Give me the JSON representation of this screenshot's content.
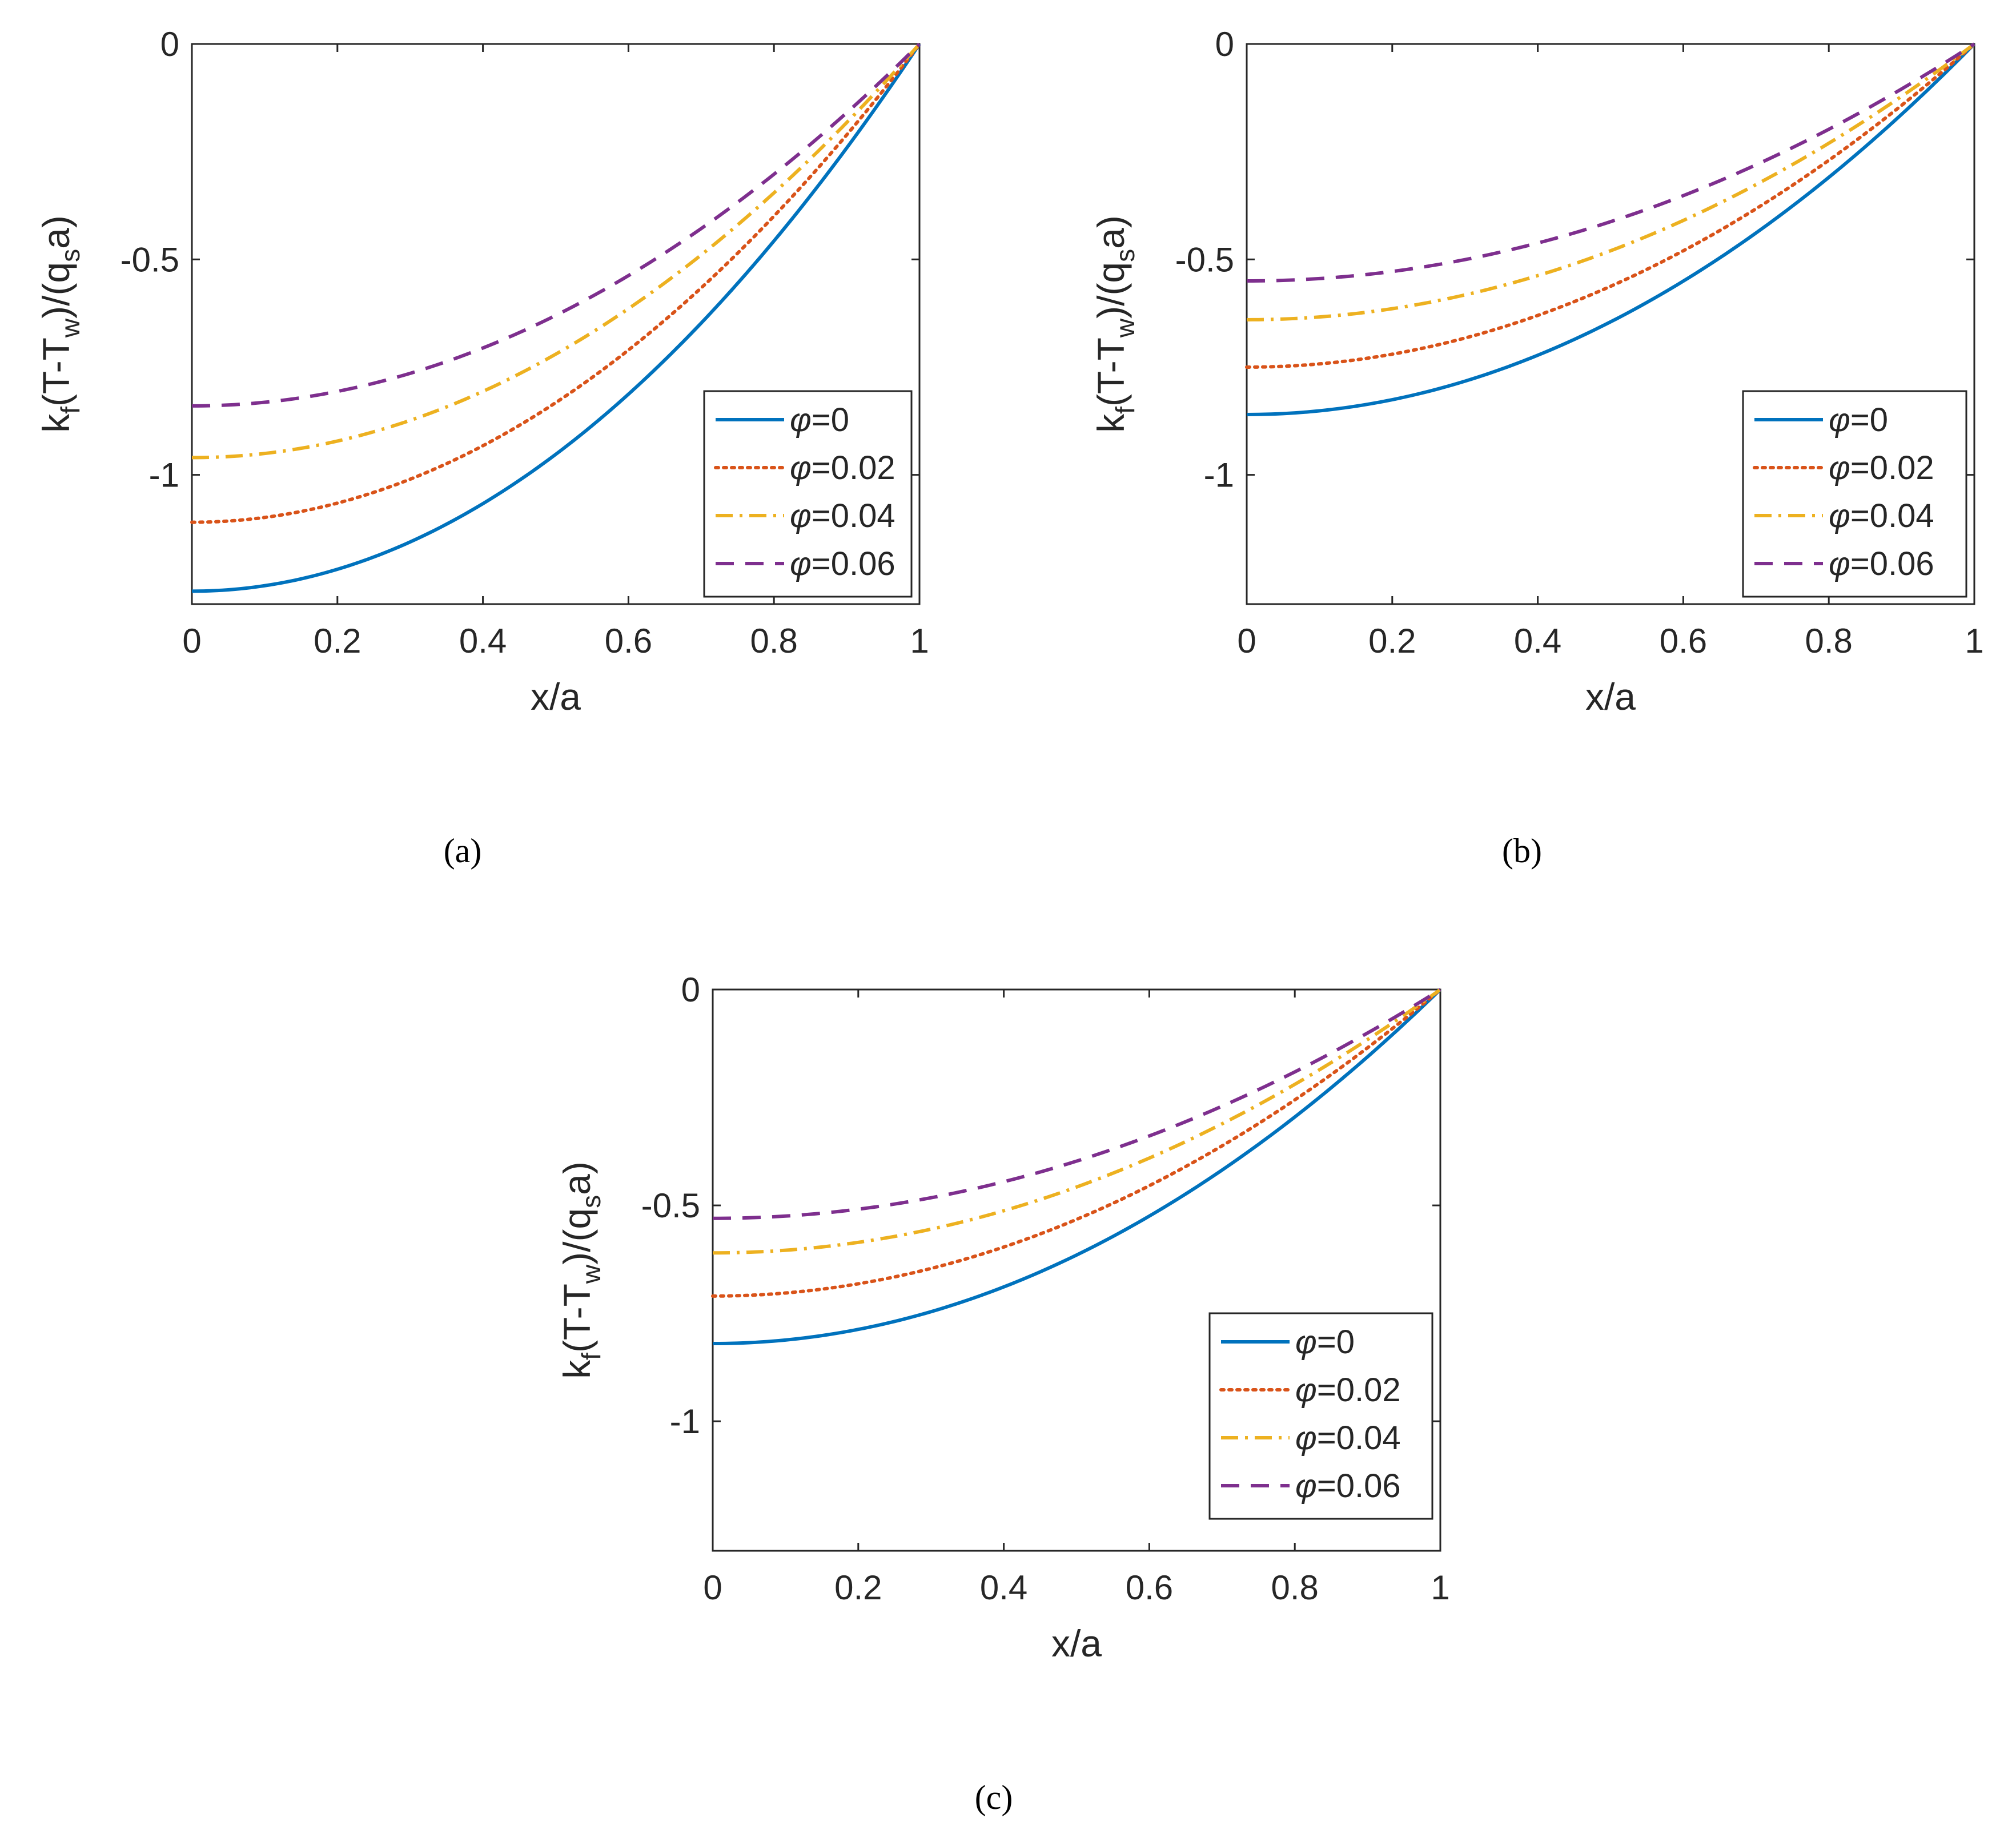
{
  "figure": {
    "panels": [
      "(a)",
      "(b)",
      "(c)"
    ]
  },
  "colors": {
    "phi0": "#0072BD",
    "phi002": "#D95319",
    "phi004": "#EDB120",
    "phi006": "#7E2F8E",
    "axis": "#262626"
  },
  "chart_data": [
    {
      "type": "line",
      "panel": "(a)",
      "xlabel": "x/a",
      "ylabel": "k_f(T-T_w)/(q_s a)",
      "ylabel_parts": {
        "k": "k",
        "f": "f",
        "mid": "(T-T",
        "w": "w",
        "mid2": ")/(q",
        "s": "s",
        "end": "a)"
      },
      "xlim": [
        0,
        1
      ],
      "ylim": [
        -1.3,
        0
      ],
      "xticks": [
        "0",
        "0.2",
        "0.4",
        "0.6",
        "0.8",
        "1"
      ],
      "yticks": [
        "0",
        "-0.5",
        "-1"
      ],
      "legend_position": "bottom-right",
      "series": [
        {
          "name": "φ=0",
          "phi_symbol": "φ",
          "phi_value": "=0",
          "style": "solid",
          "y0": -1.27
        },
        {
          "name": "φ=0.02",
          "phi_symbol": "φ",
          "phi_value": "=0.02",
          "style": "dotted",
          "y0": -1.11
        },
        {
          "name": "φ=0.04",
          "phi_symbol": "φ",
          "phi_value": "=0.04",
          "style": "dashdot",
          "y0": -0.96
        },
        {
          "name": "φ=0.06",
          "phi_symbol": "φ",
          "phi_value": "=0.06",
          "style": "dashed",
          "y0": -0.84
        }
      ]
    },
    {
      "type": "line",
      "panel": "(b)",
      "xlabel": "x/a",
      "ylabel": "k_f(T-T_w)/(q_s a)",
      "ylabel_parts": {
        "k": "k",
        "f": "f",
        "mid": "(T-T",
        "w": "w",
        "mid2": ")/(q",
        "s": "s",
        "end": "a)"
      },
      "xlim": [
        0,
        1
      ],
      "ylim": [
        -1.3,
        0
      ],
      "xticks": [
        "0",
        "0.2",
        "0.4",
        "0.6",
        "0.8",
        "1"
      ],
      "yticks": [
        "0",
        "-0.5",
        "-1"
      ],
      "legend_position": "bottom-right",
      "series": [
        {
          "name": "φ=0",
          "phi_symbol": "φ",
          "phi_value": "=0",
          "style": "solid",
          "y0": -0.86
        },
        {
          "name": "φ=0.02",
          "phi_symbol": "φ",
          "phi_value": "=0.02",
          "style": "dotted",
          "y0": -0.75
        },
        {
          "name": "φ=0.04",
          "phi_symbol": "φ",
          "phi_value": "=0.04",
          "style": "dashdot",
          "y0": -0.64
        },
        {
          "name": "φ=0.06",
          "phi_symbol": "φ",
          "phi_value": "=0.06",
          "style": "dashed",
          "y0": -0.55
        }
      ]
    },
    {
      "type": "line",
      "panel": "(c)",
      "xlabel": "x/a",
      "ylabel": "k_f(T-T_w)/(q_s a)",
      "ylabel_parts": {
        "k": "k",
        "f": "f",
        "mid": "(T-T",
        "w": "w",
        "mid2": ")/(q",
        "s": "s",
        "end": "a)"
      },
      "xlim": [
        0,
        1
      ],
      "ylim": [
        -1.3,
        0
      ],
      "xticks": [
        "0",
        "0.2",
        "0.4",
        "0.6",
        "0.8",
        "1"
      ],
      "yticks": [
        "0",
        "-0.5",
        "-1"
      ],
      "legend_position": "bottom-right",
      "series": [
        {
          "name": "φ=0",
          "phi_symbol": "φ",
          "phi_value": "=0",
          "style": "solid",
          "y0": -0.82
        },
        {
          "name": "φ=0.02",
          "phi_symbol": "φ",
          "phi_value": "=0.02",
          "style": "dotted",
          "y0": -0.71
        },
        {
          "name": "φ=0.04",
          "phi_symbol": "φ",
          "phi_value": "=0.04",
          "style": "dashdot",
          "y0": -0.61
        },
        {
          "name": "φ=0.06",
          "phi_symbol": "φ",
          "phi_value": "=0.06",
          "style": "dashed",
          "y0": -0.53
        }
      ]
    }
  ]
}
